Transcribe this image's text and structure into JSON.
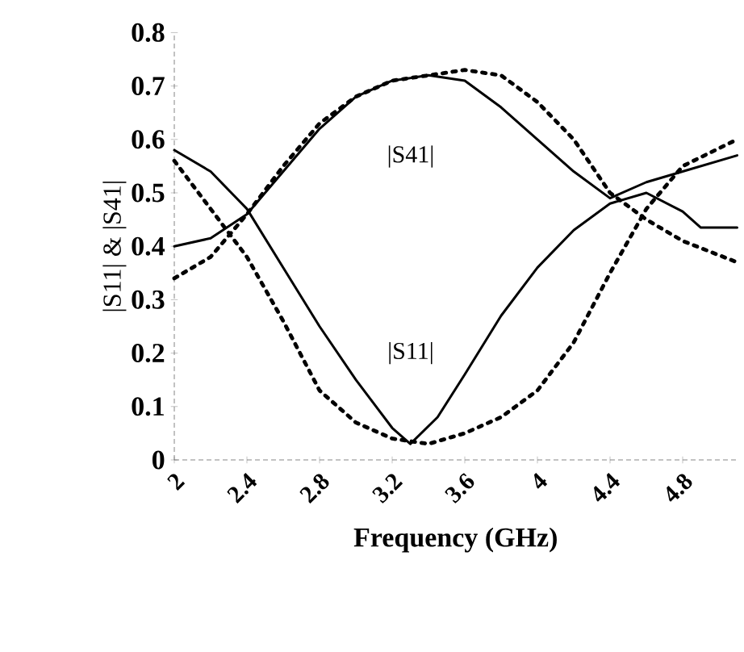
{
  "chart_data": {
    "type": "line",
    "xlabel": "Frequency (GHz)",
    "ylabel": "|S11| & |S41|",
    "xlim": [
      2,
      5.1
    ],
    "ylim": [
      0,
      0.8
    ],
    "xticks": [
      2,
      2.4,
      2.8,
      3.2,
      3.6,
      4,
      4.4,
      4.8
    ],
    "yticks": [
      0,
      0.1,
      0.2,
      0.3,
      0.4,
      0.5,
      0.6,
      0.7,
      0.8
    ],
    "grid": false,
    "marker": "none",
    "series": [
      {
        "color": "#000000",
        "line_style": "solid",
        "x": [
          2.0,
          2.2,
          2.4,
          2.6,
          2.8,
          3.0,
          3.2,
          3.3,
          3.45,
          3.6,
          3.8,
          4.0,
          4.2,
          4.4,
          4.6,
          4.8,
          4.9,
          5.1
        ],
        "values": [
          0.58,
          0.54,
          0.47,
          0.36,
          0.25,
          0.15,
          0.06,
          0.03,
          0.08,
          0.16,
          0.27,
          0.36,
          0.43,
          0.48,
          0.5,
          0.465,
          0.435,
          0.435
        ]
      },
      {
        "color": "#000000",
        "line_style": "solid",
        "x": [
          2.0,
          2.2,
          2.4,
          2.6,
          2.8,
          3.0,
          3.2,
          3.4,
          3.6,
          3.8,
          4.0,
          4.2,
          4.4,
          4.6,
          4.8,
          5.1
        ],
        "values": [
          0.4,
          0.415,
          0.46,
          0.54,
          0.62,
          0.68,
          0.71,
          0.72,
          0.71,
          0.66,
          0.6,
          0.54,
          0.49,
          0.52,
          0.54,
          0.57
        ]
      },
      {
        "color": "#000000",
        "line_style": "dotted",
        "x": [
          2.0,
          2.2,
          2.4,
          2.6,
          2.8,
          3.0,
          3.2,
          3.4,
          3.6,
          3.8,
          4.0,
          4.2,
          4.4,
          4.6,
          4.8,
          5.1
        ],
        "values": [
          0.56,
          0.47,
          0.38,
          0.26,
          0.13,
          0.07,
          0.04,
          0.03,
          0.05,
          0.08,
          0.13,
          0.22,
          0.35,
          0.47,
          0.55,
          0.6
        ]
      },
      {
        "color": "#000000",
        "line_style": "dotted",
        "x": [
          2.0,
          2.2,
          2.4,
          2.6,
          2.8,
          3.0,
          3.2,
          3.4,
          3.6,
          3.8,
          4.0,
          4.2,
          4.4,
          4.6,
          4.8,
          5.1
        ],
        "values": [
          0.34,
          0.38,
          0.46,
          0.55,
          0.63,
          0.68,
          0.71,
          0.72,
          0.73,
          0.72,
          0.67,
          0.6,
          0.5,
          0.45,
          0.41,
          0.37
        ]
      }
    ],
    "annotations": [
      "|S41|",
      "|S11|"
    ]
  }
}
